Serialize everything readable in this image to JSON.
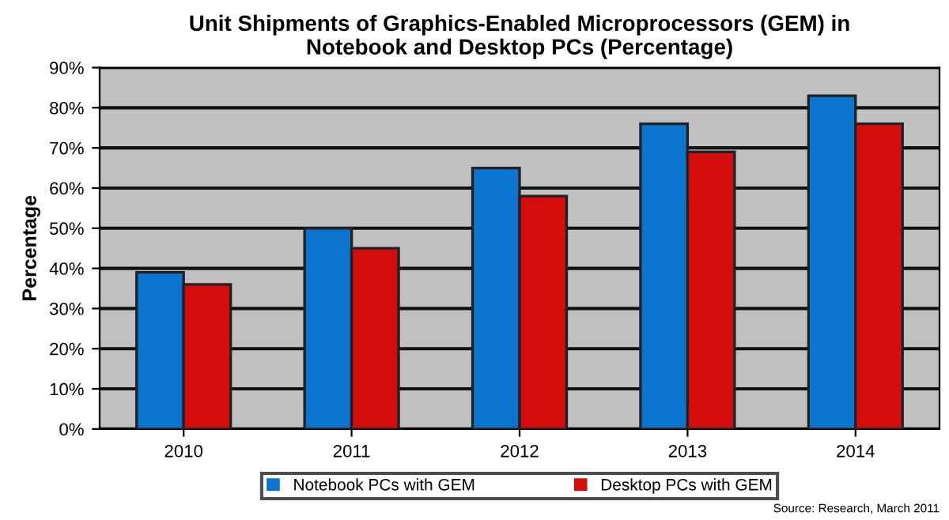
{
  "chart_data": {
    "type": "bar",
    "title": "Unit Shipments of Graphics-Enabled Microprocessors (GEM) in\nNotebook and Desktop PCs (Percentage)",
    "ylabel": "Percentage",
    "categories": [
      "2010",
      "2011",
      "2012",
      "2013",
      "2014"
    ],
    "series": [
      {
        "name": "Notebook PCs with GEM",
        "color": "#0a74cf",
        "values": [
          39,
          50,
          65,
          76,
          83
        ]
      },
      {
        "name": "Desktop PCs with GEM",
        "color": "#d40c0c",
        "values": [
          36,
          45,
          58,
          69,
          76
        ]
      }
    ],
    "ylim": [
      0,
      90
    ],
    "yticks": [
      {
        "value": 0,
        "label": "0%"
      },
      {
        "value": 10,
        "label": "10%"
      },
      {
        "value": 20,
        "label": "20%"
      },
      {
        "value": 30,
        "label": "30%"
      },
      {
        "value": 40,
        "label": "40%"
      },
      {
        "value": 50,
        "label": "50%"
      },
      {
        "value": 60,
        "label": "60%"
      },
      {
        "value": 70,
        "label": "70%"
      },
      {
        "value": 80,
        "label": "80%"
      },
      {
        "value": 90,
        "label": "90%"
      }
    ],
    "grid": "y",
    "legend": "bottom",
    "annotations": [
      "Source: Research, March 2011"
    ]
  }
}
